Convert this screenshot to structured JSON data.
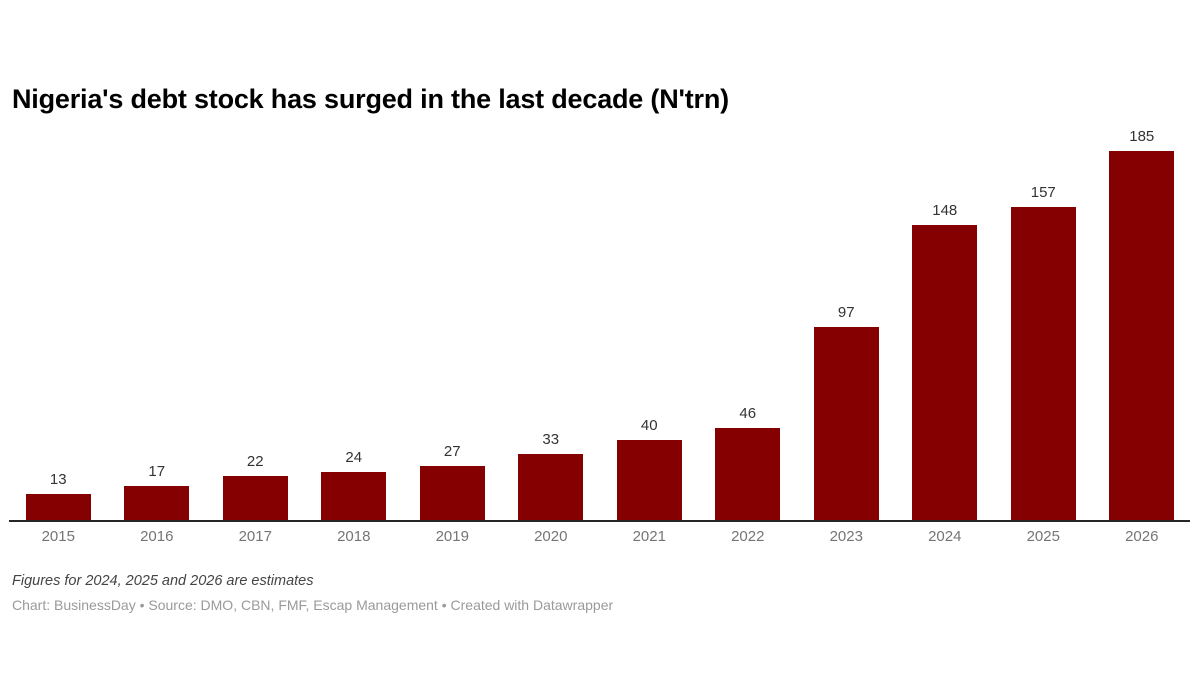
{
  "header": {
    "title": "Nigeria's debt stock has surged in the last decade (N'trn)"
  },
  "chart_data": {
    "type": "bar",
    "title": "Nigeria's debt stock has surged in the last decade (N'trn)",
    "categories": [
      "2015",
      "2016",
      "2017",
      "2018",
      "2019",
      "2020",
      "2021",
      "2022",
      "2023",
      "2024",
      "2025",
      "2026"
    ],
    "values": [
      13,
      17,
      22,
      24,
      27,
      33,
      40,
      46,
      97,
      148,
      157,
      185
    ],
    "xlabel": "",
    "ylabel": "",
    "ylim": [
      0,
      185
    ],
    "grid": false,
    "legend": false,
    "value_labels_on_top": true,
    "bar_color": "#850000",
    "axis_line_color": "#262626",
    "tick_label_color": "#757575",
    "value_label_color": "#333333"
  },
  "footer": {
    "note": "Figures for 2024, 2025 and 2026 are estimates",
    "attribution": "Chart: BusinessDay • Source: DMO, CBN, FMF, Escap Management • Created with Datawrapper"
  }
}
